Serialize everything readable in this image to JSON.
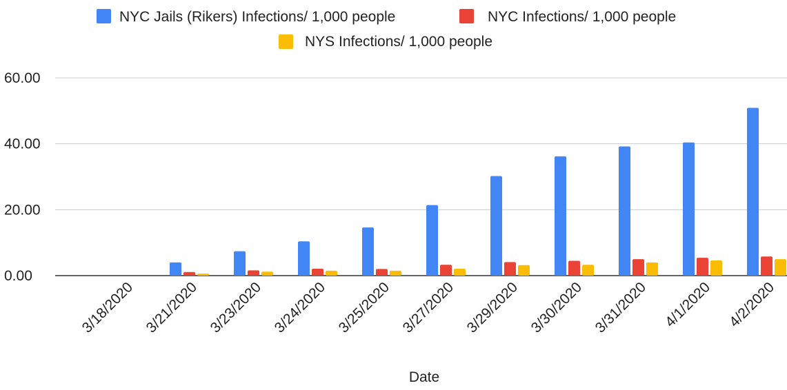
{
  "chart_data": {
    "type": "bar",
    "title": "",
    "xlabel": "Date",
    "ylabel": "",
    "ylim": [
      0,
      60
    ],
    "yticks": [
      "0.00",
      "20.00",
      "40.00",
      "60.00"
    ],
    "yticks_values": [
      0,
      20,
      40,
      60
    ],
    "grid": true,
    "legend_position": "top",
    "categories": [
      "3/18/2020",
      "3/21/2020",
      "3/23/2020",
      "3/24/2020",
      "3/25/2020",
      "3/27/2020",
      "3/29/2020",
      "3/30/2020",
      "3/31/2020",
      "4/1/2020",
      "4/2/2020"
    ],
    "series": [
      {
        "name": "NYC Jails (Rikers) Infections/ 1,000 people",
        "color": "#4285F4",
        "values": [
          0.0,
          4.0,
          7.4,
          10.4,
          14.6,
          21.4,
          30.2,
          36.2,
          39.2,
          40.4,
          50.9
        ]
      },
      {
        "name": "NYC Infections/ 1,000 people",
        "color": "#EA4335",
        "values": [
          0.0,
          1.1,
          1.6,
          2.1,
          2.0,
          3.3,
          4.1,
          4.5,
          5.0,
          5.4,
          5.8
        ]
      },
      {
        "name": "NYS Infections/ 1,000 people",
        "color": "#FBBC04",
        "values": [
          0.0,
          0.6,
          1.2,
          1.5,
          1.5,
          2.1,
          3.2,
          3.3,
          4.0,
          4.6,
          5.0
        ]
      }
    ]
  }
}
